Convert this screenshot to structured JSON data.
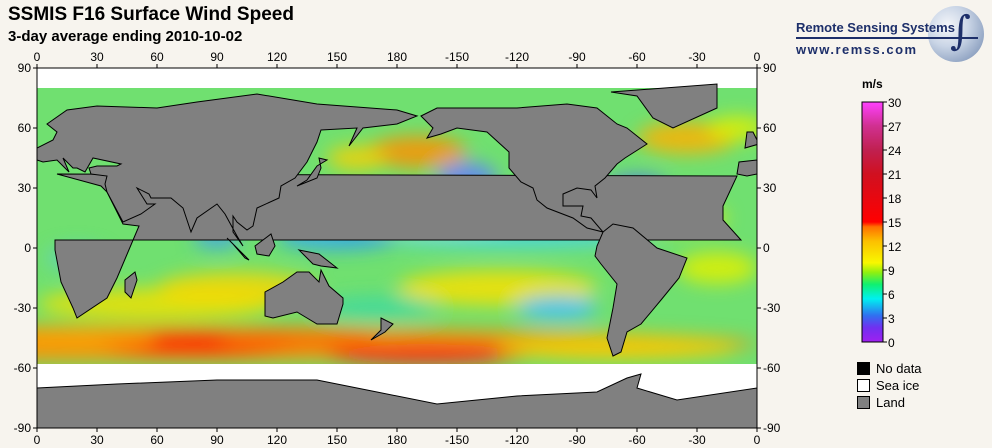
{
  "header": {
    "title": "SSMIS F16 Surface Wind Speed",
    "subtitle": "3-day average ending 2010-10-02"
  },
  "logo": {
    "name": "Remote Sensing Systems",
    "url": "www.remss.com"
  },
  "map": {
    "lon_ticks": [
      "0",
      "30",
      "60",
      "90",
      "120",
      "150",
      "180",
      "-150",
      "-120",
      "-90",
      "-60",
      "-30",
      "0"
    ],
    "lat_ticks": [
      "90",
      "60",
      "30",
      "0",
      "-30",
      "-60",
      "-90"
    ],
    "colors": {
      "land": "#808080",
      "sea_ice": "#ffffff",
      "no_data": "#000000"
    }
  },
  "colorbar": {
    "unit": "m/s",
    "ticks": [
      "30",
      "27",
      "24",
      "21",
      "18",
      "15",
      "12",
      "9",
      "6",
      "3",
      "0"
    ],
    "range": [
      0,
      30
    ]
  },
  "legend": [
    {
      "label": "No data",
      "color": "#000000"
    },
    {
      "label": "Sea ice",
      "color": "#ffffff"
    },
    {
      "label": "Land",
      "color": "#808080"
    }
  ]
}
